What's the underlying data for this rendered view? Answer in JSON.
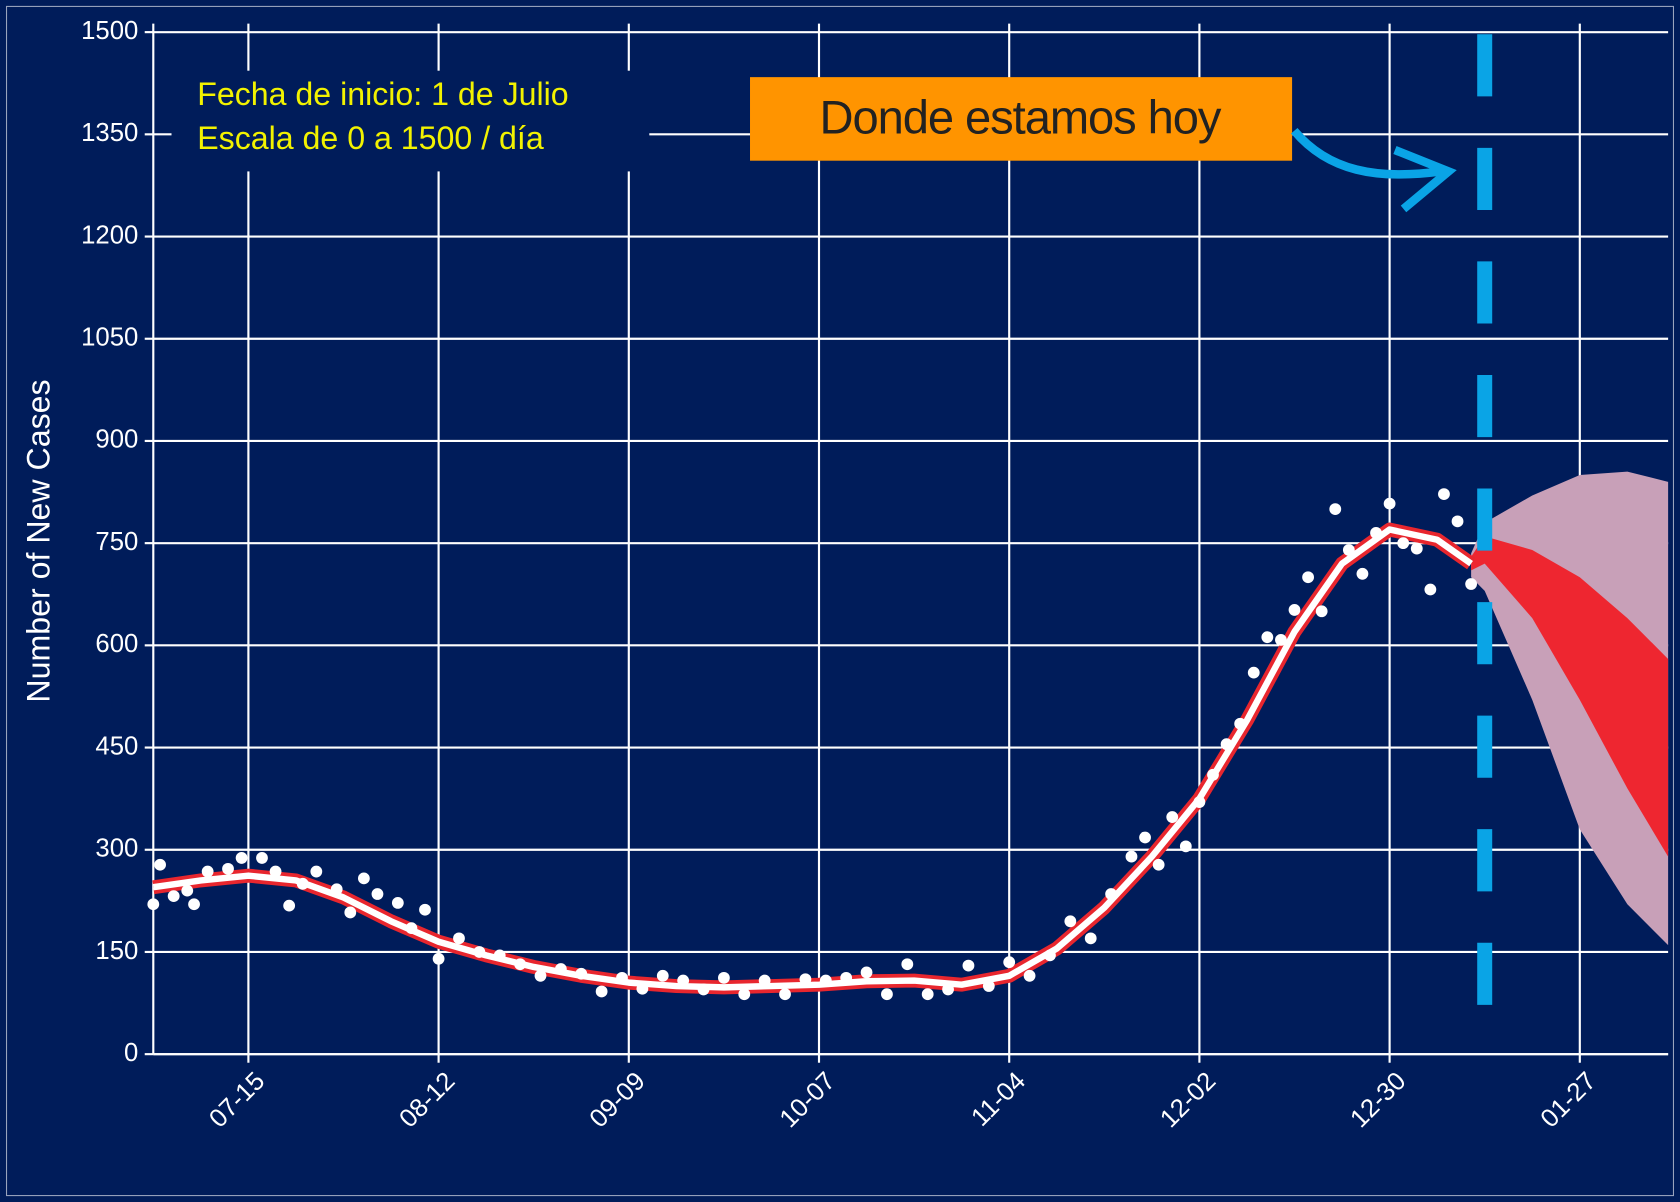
{
  "chart_data": {
    "type": "scatter",
    "ylabel": "Number of New Cases",
    "annotations": [
      "Fecha de inicio: 1 de Julio",
      "Escala de 0 a 1500 / día",
      "Donde estamos hoy"
    ],
    "xlim": [
      "07-01",
      "02-09"
    ],
    "xticks": [
      "07-15",
      "08-12",
      "09-09",
      "10-07",
      "11-04",
      "12-02",
      "12-30",
      "01-27"
    ],
    "ylim": [
      0,
      1500
    ],
    "yticks": [
      0,
      150,
      300,
      450,
      600,
      750,
      900,
      1050,
      1200,
      1350,
      1500
    ],
    "grid": true,
    "today": "01-13",
    "points": {
      "color": "#ffffff",
      "x": [
        "07-01",
        "07-02",
        "07-04",
        "07-06",
        "07-07",
        "07-09",
        "07-12",
        "07-14",
        "07-17",
        "07-19",
        "07-21",
        "07-23",
        "07-25",
        "07-28",
        "07-30",
        "08-01",
        "08-03",
        "08-06",
        "08-08",
        "08-10",
        "08-12",
        "08-15",
        "08-18",
        "08-21",
        "08-24",
        "08-27",
        "08-30",
        "09-02",
        "09-05",
        "09-08",
        "09-11",
        "09-14",
        "09-17",
        "09-20",
        "09-23",
        "09-26",
        "09-29",
        "10-02",
        "10-05",
        "10-08",
        "10-11",
        "10-14",
        "10-17",
        "10-20",
        "10-23",
        "10-26",
        "10-29",
        "11-01",
        "11-04",
        "11-07",
        "11-10",
        "11-13",
        "11-16",
        "11-19",
        "11-22",
        "11-24",
        "11-26",
        "11-28",
        "11-30",
        "12-02",
        "12-04",
        "12-06",
        "12-08",
        "12-10",
        "12-12",
        "12-14",
        "12-16",
        "12-18",
        "12-20",
        "12-22",
        "12-24",
        "12-26",
        "12-28",
        "12-30",
        "01-01",
        "01-03",
        "01-05",
        "01-07",
        "01-09",
        "01-11"
      ],
      "values": [
        220,
        278,
        232,
        240,
        220,
        268,
        272,
        288,
        288,
        268,
        218,
        250,
        268,
        242,
        208,
        258,
        235,
        222,
        185,
        212,
        140,
        170,
        150,
        145,
        132,
        115,
        125,
        118,
        92,
        112,
        96,
        115,
        108,
        95,
        112,
        88,
        108,
        88,
        110,
        108,
        112,
        120,
        88,
        132,
        88,
        95,
        130,
        100,
        135,
        115,
        145,
        195,
        170,
        235,
        290,
        318,
        278,
        348,
        305,
        370,
        410,
        455,
        485,
        560,
        612,
        608,
        652,
        700,
        650,
        800,
        740,
        705,
        765,
        808,
        750,
        742,
        682,
        822,
        782,
        690
      ]
    },
    "fit": {
      "color": "#ffffff",
      "edge_color": "#e8262e",
      "x": [
        "07-01",
        "07-08",
        "07-15",
        "07-22",
        "07-29",
        "08-05",
        "08-12",
        "08-19",
        "08-26",
        "09-02",
        "09-09",
        "09-16",
        "09-23",
        "09-30",
        "10-07",
        "10-14",
        "10-21",
        "10-28",
        "11-04",
        "11-11",
        "11-18",
        "11-25",
        "12-02",
        "12-09",
        "12-16",
        "12-23",
        "12-30",
        "01-06",
        "01-11"
      ],
      "values": [
        245,
        255,
        262,
        255,
        230,
        195,
        165,
        145,
        128,
        115,
        105,
        100,
        98,
        100,
        102,
        107,
        108,
        102,
        115,
        155,
        215,
        290,
        375,
        490,
        620,
        720,
        770,
        755,
        720
      ]
    },
    "band_95": {
      "color": "#c8a0b8",
      "x": [
        "01-11",
        "01-13",
        "01-20",
        "01-27",
        "02-03",
        "02-09"
      ],
      "lower": [
        700,
        680,
        520,
        330,
        220,
        160
      ],
      "upper": [
        735,
        780,
        820,
        850,
        855,
        840
      ]
    },
    "band_50": {
      "color": "#ee2630",
      "x": [
        "01-11",
        "01-13",
        "01-20",
        "01-27",
        "02-03",
        "02-09"
      ],
      "lower": [
        710,
        720,
        640,
        520,
        390,
        290
      ],
      "upper": [
        730,
        760,
        740,
        700,
        640,
        580
      ]
    },
    "today_color": "#0aa4e6"
  }
}
